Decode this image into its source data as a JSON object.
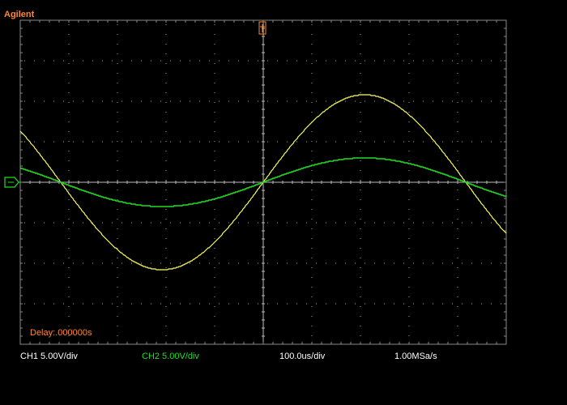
{
  "header": {
    "brand": "Agilent"
  },
  "screen": {
    "delay": "Delay:.000000s"
  },
  "status_bar": {
    "ch1": "CH1 5.00V/div",
    "ch2": "CH2 5.00V/div",
    "timebase": "100.0us/div",
    "sample_rate": "1.00MSa/s"
  }
}
